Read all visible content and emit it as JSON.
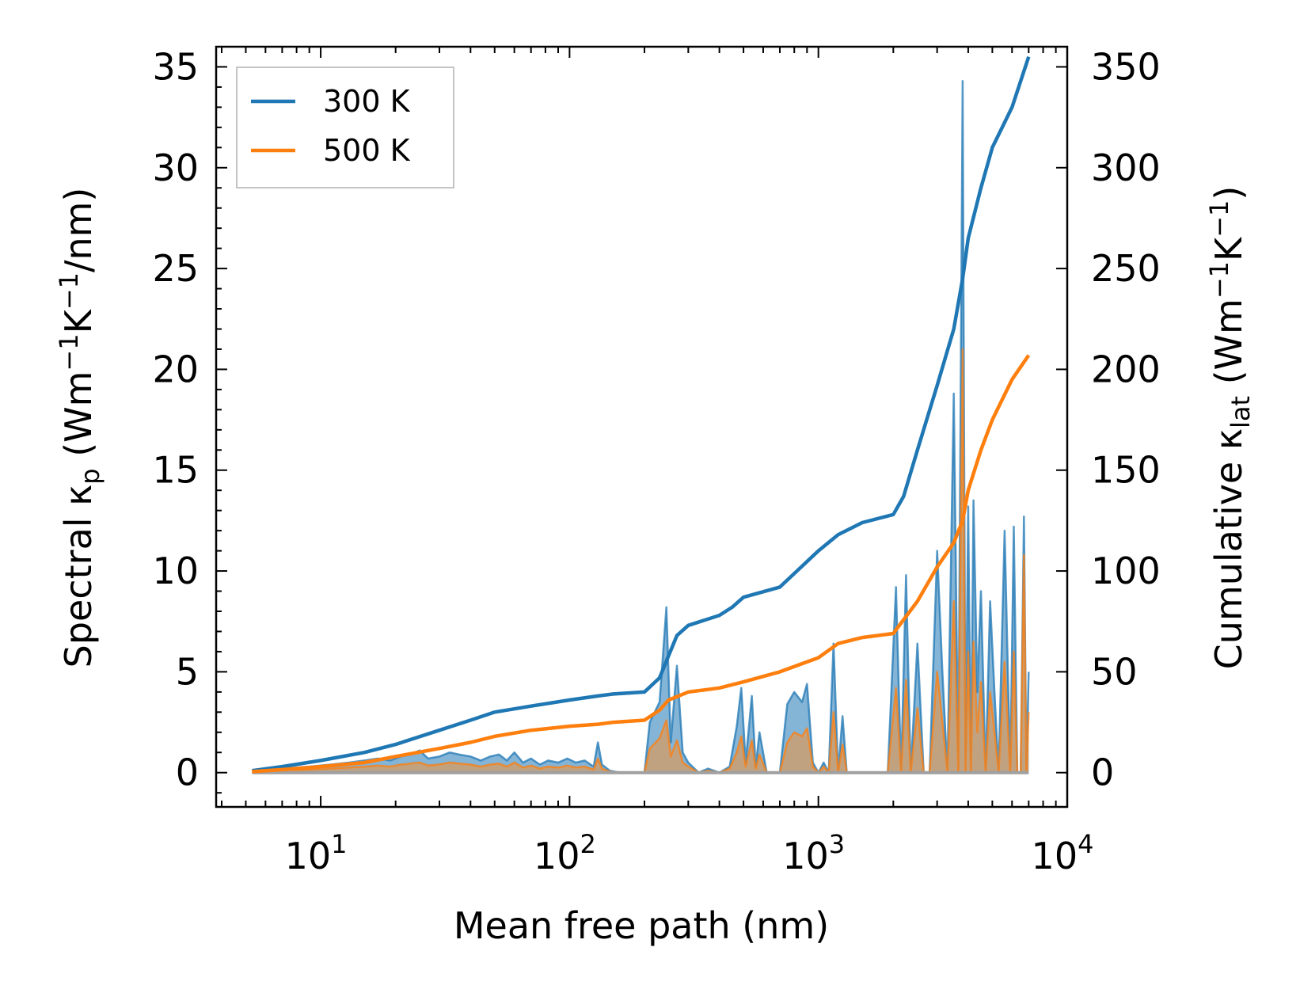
{
  "chart_data": {
    "type": "line",
    "title": "",
    "xlabel": "Mean free path (nm)",
    "ylabel_left": {
      "prefix": "Spectral κ",
      "sub": "p",
      "units_open": " (Wm",
      "e1": "−1",
      "k": "K",
      "e2": "−1",
      "units_close": "/nm)"
    },
    "ylabel_right": {
      "prefix": "Cumulative κ",
      "sub": "lat",
      "units_open": " (Wm",
      "e1": "−1",
      "k": "K",
      "e2": "−1",
      "units_close": ")"
    },
    "xscale": "log",
    "xlim": [
      3.8,
      10000
    ],
    "ylim_left": [
      -1.7,
      36
    ],
    "ylim_right": [
      -17,
      360
    ],
    "x_ticks": [
      {
        "base": "10",
        "exp": "1",
        "value": 10
      },
      {
        "base": "10",
        "exp": "2",
        "value": 100
      },
      {
        "base": "10",
        "exp": "3",
        "value": 1000
      },
      {
        "base": "10",
        "exp": "4",
        "value": 10000
      }
    ],
    "y_left_ticks": [
      "0",
      "5",
      "10",
      "15",
      "20",
      "25",
      "30",
      "35"
    ],
    "y_right_ticks": [
      "0",
      "50",
      "100",
      "150",
      "200",
      "250",
      "300",
      "350"
    ],
    "legend": {
      "location": "top-left"
    },
    "colors": {
      "s300": "#1f77b4",
      "s500": "#ff7f0e",
      "fill300": "#1f77b4",
      "fill500": "#c8a077"
    },
    "series": [
      {
        "name": "300 K",
        "axis": "right",
        "kind": "cumulative",
        "x": [
          5.3,
          7,
          10,
          15,
          20,
          30,
          40,
          50,
          70,
          100,
          130,
          150,
          200,
          230,
          250,
          270,
          300,
          400,
          450,
          500,
          700,
          1000,
          1200,
          1500,
          2000,
          2200,
          2500,
          3000,
          3500,
          3800,
          4000,
          4500,
          5000,
          6000,
          7000
        ],
        "y": [
          1,
          3,
          6,
          10,
          14,
          21,
          26,
          30,
          33,
          36,
          38,
          39,
          40,
          47,
          58,
          68,
          73,
          78,
          82,
          87,
          92,
          110,
          118,
          124,
          128,
          137,
          160,
          192,
          220,
          245,
          265,
          290,
          310,
          330,
          355
        ]
      },
      {
        "name": "500 K",
        "axis": "right",
        "kind": "cumulative",
        "x": [
          5.3,
          7,
          10,
          15,
          20,
          30,
          40,
          50,
          70,
          100,
          130,
          150,
          200,
          230,
          250,
          300,
          400,
          500,
          700,
          1000,
          1200,
          1500,
          2000,
          2500,
          3000,
          3500,
          3800,
          4000,
          4500,
          5000,
          6000,
          7000
        ],
        "y": [
          0.5,
          1.5,
          3,
          5,
          8,
          12,
          15,
          18,
          21,
          23,
          24,
          25,
          26,
          31,
          36,
          40,
          42,
          45,
          50,
          57,
          64,
          67,
          69,
          85,
          102,
          114,
          125,
          140,
          160,
          175,
          195,
          207
        ]
      },
      {
        "name": "spectral 300 K",
        "axis": "left",
        "kind": "spectral",
        "x": [
          5.3,
          7,
          9,
          11,
          13,
          15,
          17,
          19,
          21,
          23,
          25,
          27,
          30,
          33,
          36,
          40,
          44,
          48,
          52,
          56,
          60,
          65,
          70,
          76,
          82,
          90,
          98,
          106,
          115,
          125,
          130,
          135,
          145,
          160,
          180,
          200,
          210,
          230,
          245,
          255,
          270,
          285,
          300,
          330,
          360,
          400,
          440,
          470,
          490,
          510,
          540,
          560,
          580,
          620,
          660,
          700,
          750,
          800,
          860,
          900,
          950,
          1000,
          1050,
          1100,
          1150,
          1200,
          1250,
          1300,
          1400,
          1600,
          1900,
          2050,
          2150,
          2250,
          2350,
          2500,
          2650,
          2800,
          3000,
          3150,
          3300,
          3500,
          3650,
          3800,
          3900,
          4000,
          4100,
          4200,
          4350,
          4500,
          4700,
          4900,
          5100,
          5300,
          5600,
          5900,
          6100,
          6300,
          6500,
          6700,
          6850,
          7000
        ],
        "y": [
          0.1,
          0.2,
          0.3,
          0.4,
          0.5,
          0.6,
          0.7,
          0.6,
          0.8,
          0.9,
          1.1,
          0.7,
          0.8,
          1.0,
          0.9,
          0.8,
          0.6,
          0.8,
          0.9,
          0.6,
          1.0,
          0.5,
          0.7,
          0.4,
          0.6,
          0.5,
          0.7,
          0.5,
          0.6,
          0.3,
          1.5,
          0.4,
          0.1,
          0.0,
          0.0,
          0.0,
          2.5,
          3.5,
          8.2,
          1.5,
          5.3,
          1.0,
          0.5,
          0.0,
          0.2,
          0.0,
          0.3,
          2.3,
          4.2,
          0.5,
          3.8,
          0.3,
          2.0,
          0.0,
          0.0,
          0.0,
          3.4,
          4.0,
          3.5,
          4.4,
          0.5,
          0.0,
          0.5,
          0.0,
          6.4,
          0.0,
          2.8,
          0.0,
          0.0,
          0.0,
          0.0,
          9.2,
          0.0,
          9.8,
          0.0,
          6.4,
          0.0,
          0.0,
          11.0,
          5.0,
          0.0,
          18.8,
          0.0,
          34.3,
          0.0,
          13.2,
          0.0,
          13.5,
          4.0,
          9.0,
          0.0,
          8.5,
          4.0,
          0.0,
          12.0,
          0.0,
          12.2,
          0.0,
          0.0,
          12.7,
          0.0,
          5.0
        ]
      },
      {
        "name": "spectral 500 K",
        "axis": "left",
        "kind": "spectral",
        "x": [
          5.3,
          7,
          9,
          11,
          13,
          15,
          17,
          19,
          21,
          23,
          25,
          27,
          30,
          33,
          36,
          40,
          44,
          48,
          52,
          56,
          60,
          65,
          70,
          76,
          82,
          90,
          98,
          106,
          115,
          125,
          130,
          135,
          145,
          160,
          180,
          200,
          210,
          230,
          245,
          255,
          270,
          285,
          300,
          330,
          360,
          400,
          440,
          470,
          490,
          510,
          540,
          560,
          580,
          620,
          660,
          700,
          750,
          800,
          860,
          900,
          950,
          1000,
          1050,
          1100,
          1150,
          1200,
          1250,
          1300,
          1400,
          1600,
          1900,
          2050,
          2150,
          2250,
          2350,
          2500,
          2650,
          2800,
          3000,
          3150,
          3300,
          3500,
          3650,
          3800,
          3900,
          4000,
          4100,
          4200,
          4350,
          4500,
          4700,
          4900,
          5100,
          5300,
          5600,
          5900,
          6100,
          6300,
          6500,
          6700,
          6850,
          7000
        ],
        "y": [
          0.05,
          0.1,
          0.15,
          0.2,
          0.25,
          0.3,
          0.35,
          0.3,
          0.4,
          0.45,
          0.5,
          0.35,
          0.4,
          0.5,
          0.45,
          0.4,
          0.3,
          0.4,
          0.45,
          0.3,
          0.5,
          0.25,
          0.35,
          0.2,
          0.3,
          0.25,
          0.35,
          0.25,
          0.3,
          0.15,
          0.7,
          0.2,
          0.05,
          0.0,
          0.0,
          0.0,
          1.2,
          1.7,
          2.6,
          0.8,
          1.6,
          0.5,
          0.3,
          0.0,
          0.1,
          0.0,
          0.2,
          1.0,
          1.8,
          0.3,
          1.6,
          0.2,
          0.9,
          0.0,
          0.0,
          0.0,
          1.5,
          2.0,
          1.8,
          2.2,
          0.3,
          0.0,
          0.3,
          0.0,
          3.0,
          0.0,
          1.4,
          0.0,
          0.0,
          0.0,
          0.0,
          4.2,
          0.0,
          4.6,
          0.0,
          3.2,
          0.0,
          0.0,
          5.0,
          2.5,
          0.0,
          8.5,
          0.0,
          21.0,
          0.0,
          6.0,
          0.0,
          6.5,
          2.0,
          4.5,
          0.0,
          4.0,
          2.0,
          0.0,
          5.5,
          0.0,
          6.0,
          0.0,
          0.0,
          10.8,
          0.0,
          3.0
        ]
      }
    ]
  }
}
